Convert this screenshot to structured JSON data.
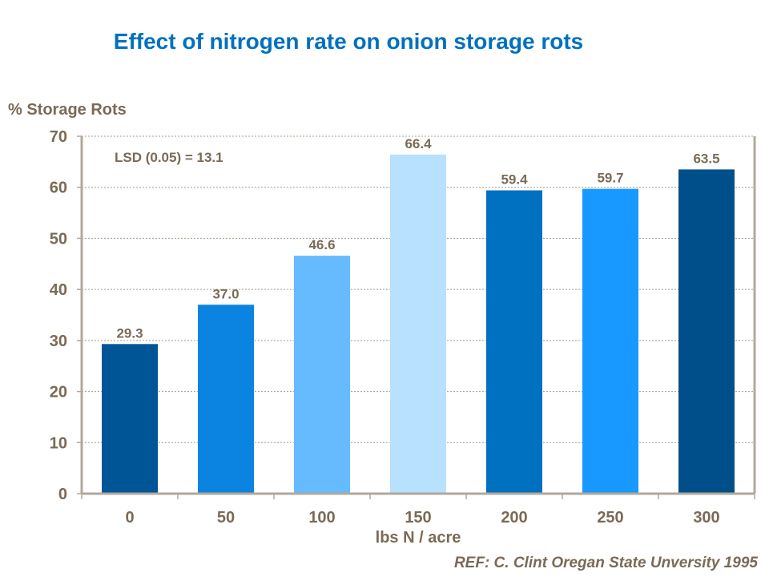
{
  "chart_data": {
    "type": "bar",
    "title": "Effect of nitrogen rate on onion storage rots",
    "ylabel": "% Storage Rots",
    "xlabel": "lbs N / acre",
    "categories": [
      "0",
      "50",
      "100",
      "150",
      "200",
      "250",
      "300"
    ],
    "values": [
      29.3,
      37.0,
      46.6,
      66.4,
      59.4,
      59.7,
      63.5
    ],
    "data_labels": [
      "29.3",
      "37.0",
      "46.6",
      "66.4",
      "59.4",
      "59.7",
      "63.5"
    ],
    "bar_colors": [
      "#005596",
      "#0A84E0",
      "#66BBFF",
      "#B8E0FF",
      "#0070C0",
      "#1899FF",
      "#004F8A"
    ],
    "ylim": [
      0,
      70
    ],
    "yticks": [
      0,
      10,
      20,
      30,
      40,
      50,
      60,
      70
    ],
    "grid": "horizontal dashed",
    "annotation": "LSD (0.05) = 13.1",
    "reference": "REF: C. Clint Oregan State Unversity  1995"
  },
  "colors": {
    "title": "#0070C0",
    "text": "#7A6A56",
    "axis": "#B0A89C"
  }
}
